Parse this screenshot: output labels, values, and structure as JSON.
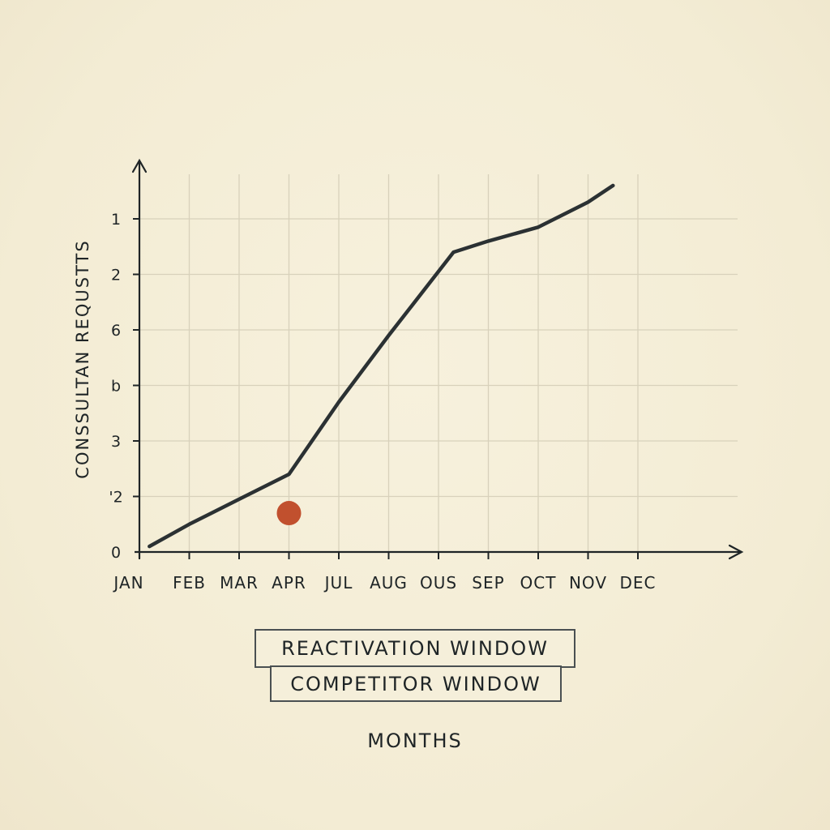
{
  "chart_data": {
    "type": "line",
    "xlabel": "MONTHS",
    "ylabel": "CONSSULTAN REQUSTTS",
    "categories": [
      "JAN",
      "FEB",
      "MAR",
      "APR",
      "JUL",
      "AUG",
      "OUS",
      "SEP",
      "OCT",
      "NOV",
      "DEC"
    ],
    "y_tick_labels": [
      "0",
      "'2",
      "3",
      "b",
      "6",
      "2",
      "1"
    ],
    "grid": true,
    "series": [
      {
        "color": "#2b3133",
        "points": [
          {
            "x": 0.2,
            "y": 0.1
          },
          {
            "x": 1.0,
            "y": 0.5
          },
          {
            "x": 2.0,
            "y": 0.95
          },
          {
            "x": 3.0,
            "y": 1.4
          },
          {
            "x": 4.0,
            "y": 2.7
          },
          {
            "x": 5.0,
            "y": 3.9
          },
          {
            "x": 6.3,
            "y": 5.4
          },
          {
            "x": 7.0,
            "y": 5.6
          },
          {
            "x": 8.0,
            "y": 5.85
          },
          {
            "x": 9.0,
            "y": 6.3
          },
          {
            "x": 9.5,
            "y": 6.6
          }
        ]
      }
    ],
    "marker": {
      "x": 3.0,
      "y": 0.7,
      "color": "#c1502e"
    },
    "legend": [
      "REACTIVATION WINDOW",
      "COMPETITOR WINDOW"
    ]
  }
}
